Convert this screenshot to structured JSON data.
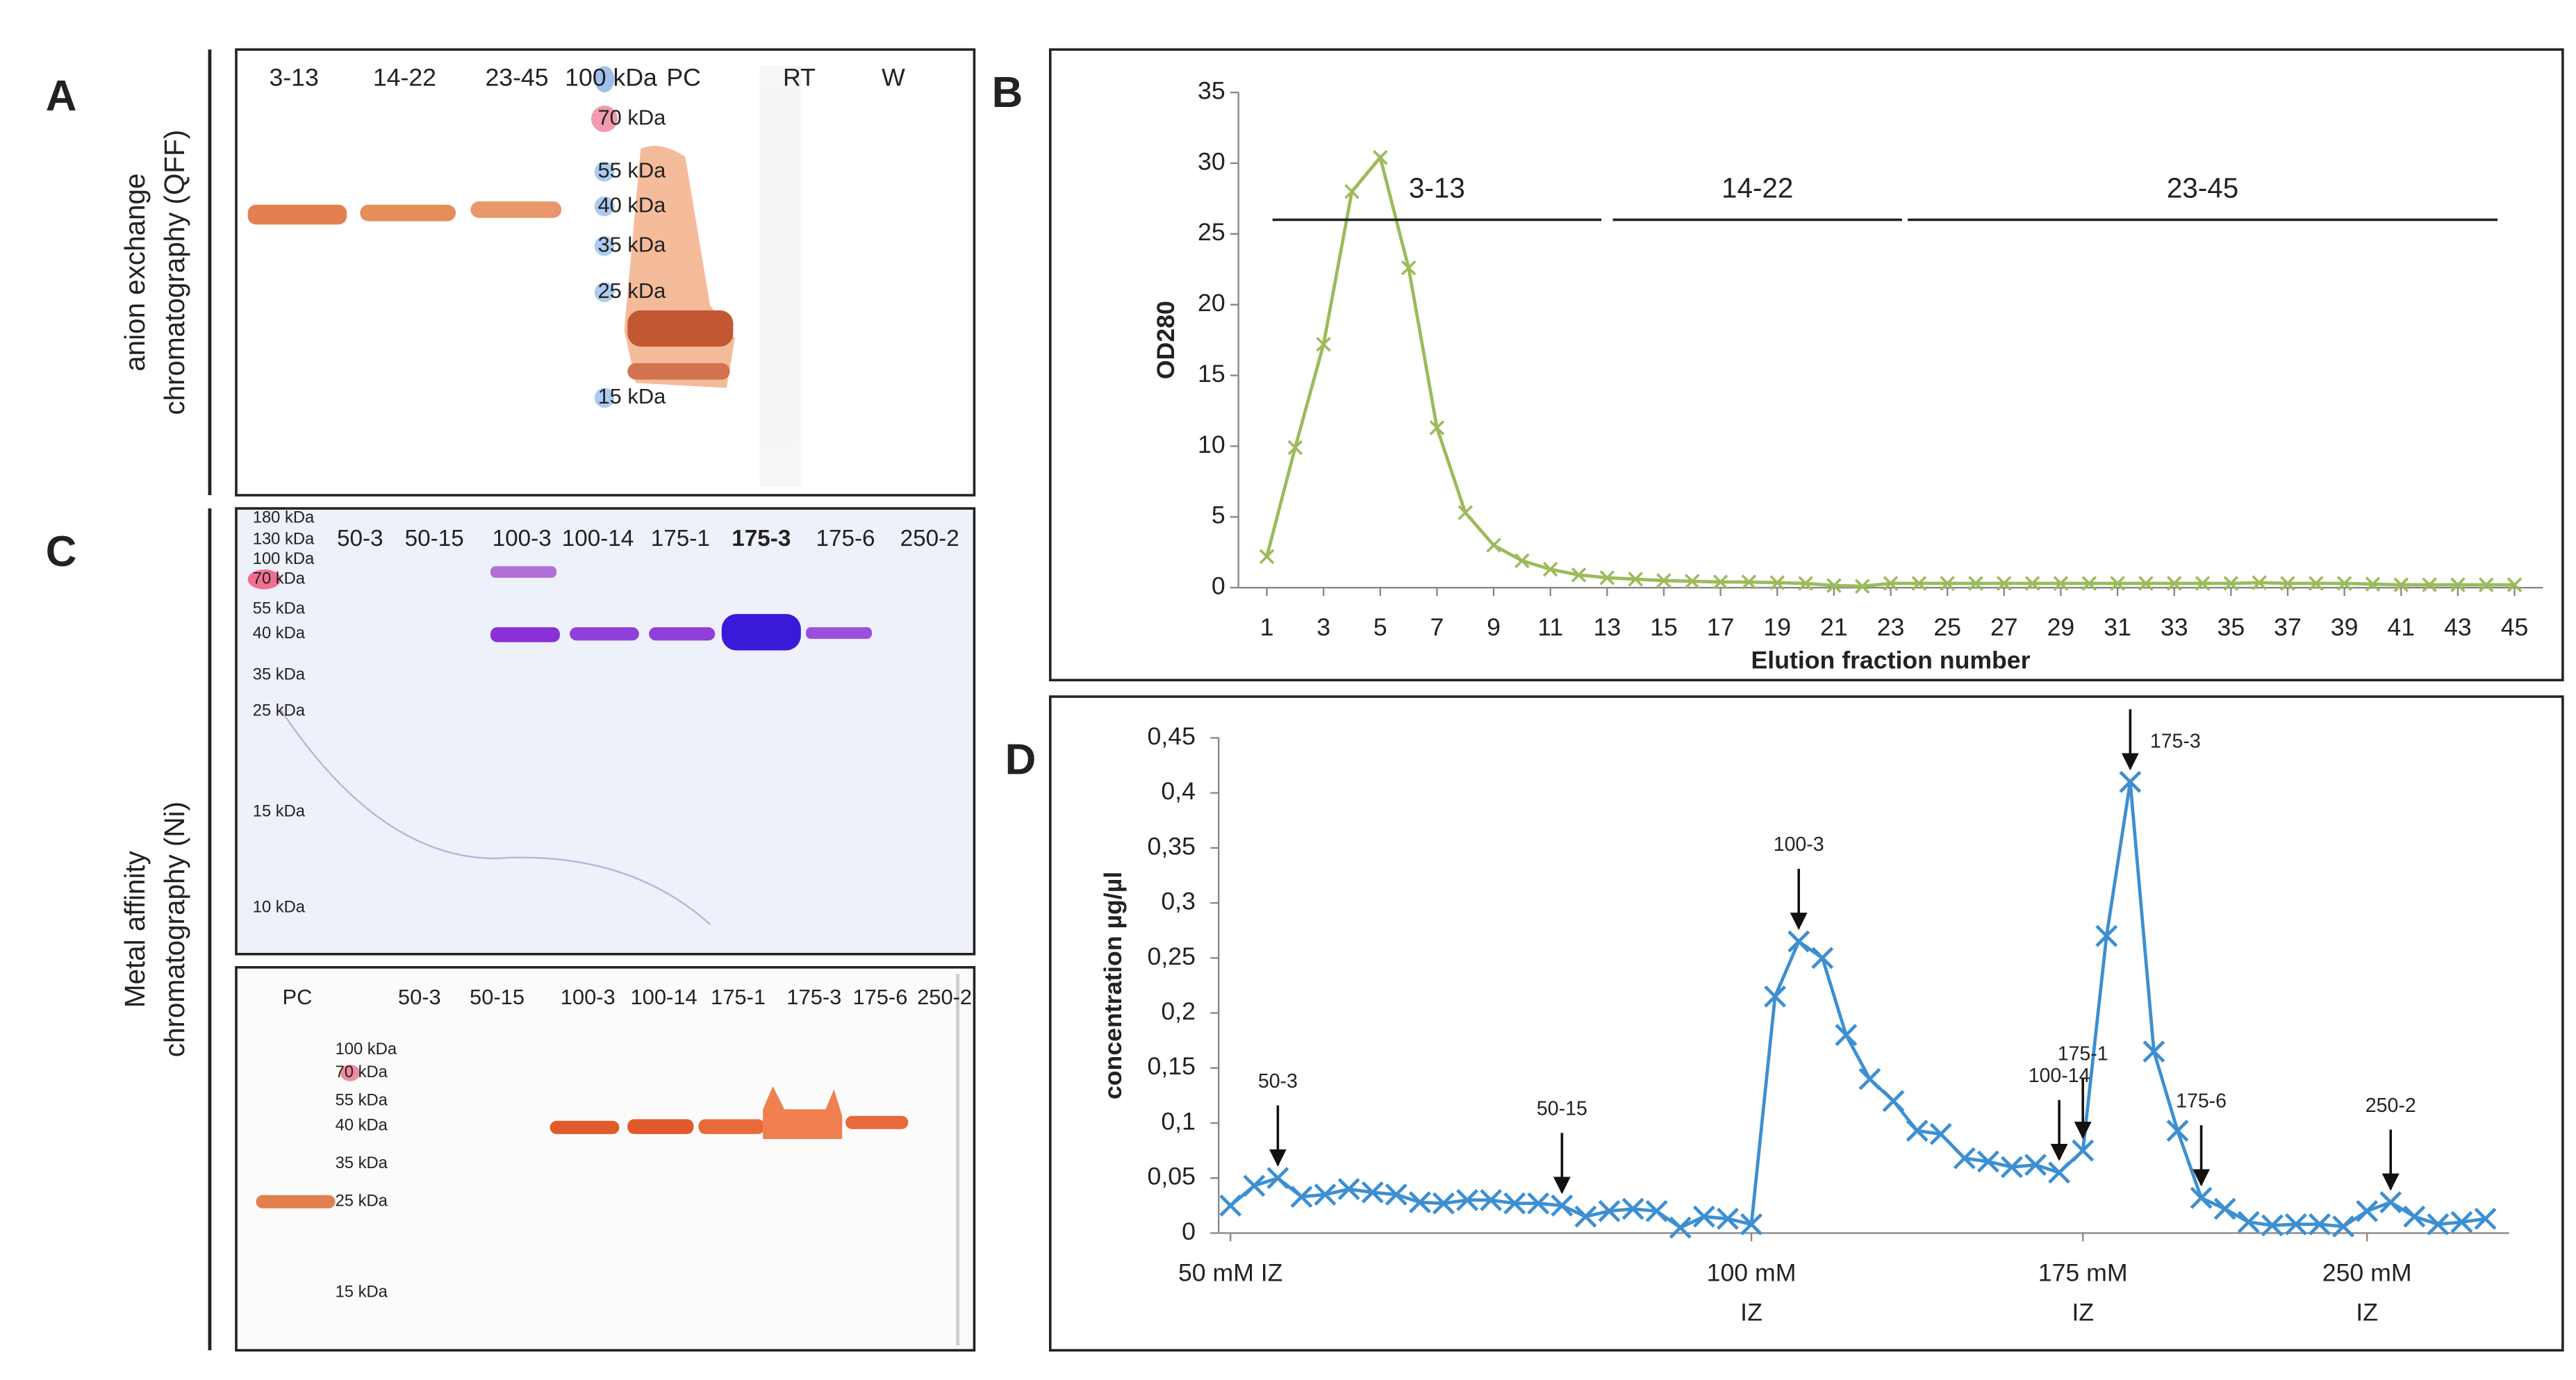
{
  "panels": [
    "A",
    "B",
    "C",
    "D"
  ],
  "gels": {
    "A": {
      "side_label": [
        "anion exchange",
        "chromatography (QFF)"
      ],
      "lanes": [
        "3-13",
        "14-22",
        "23-45",
        "100 kDa",
        "PC",
        "RT",
        "W"
      ],
      "ladder": [
        "70 kDa",
        "55 kDa",
        "40 kDa",
        "35 kDa",
        "25 kDa",
        "15 kDa"
      ]
    },
    "C": {
      "side_label": [
        "Metal affinity",
        "chromatography (Ni)"
      ],
      "top": {
        "lanes": [
          "50-3",
          "50-15",
          "100-3",
          "100-14",
          "175-1",
          "175-3",
          "175-6",
          "250-2"
        ],
        "ladder": [
          "180 kDa",
          "130 kDa",
          "100 kDa",
          "70 kDa",
          "55 kDa",
          "40 kDa",
          "35 kDa",
          "25 kDa",
          "15 kDa",
          "10 kDa"
        ]
      },
      "bottom": {
        "lanes": [
          "PC",
          "50-3",
          "50-15",
          "100-3",
          "100-14",
          "175-1",
          "175-3",
          "175-6",
          "250-2"
        ],
        "ladder": [
          "100 kDa",
          "70 kDa",
          "55 kDa",
          "40 kDa",
          "35 kDa",
          "25 kDa",
          "15 kDa"
        ]
      }
    }
  },
  "chart_data": [
    {
      "type": "line",
      "xlabel": "Elution fraction number",
      "ylabel": "OD280",
      "color": "#9bbb59",
      "marker": "x",
      "grid": false,
      "x": [
        1,
        2,
        3,
        4,
        5,
        6,
        7,
        8,
        9,
        10,
        11,
        12,
        13,
        14,
        15,
        16,
        17,
        18,
        19,
        20,
        21,
        22,
        23,
        24,
        25,
        26,
        27,
        28,
        29,
        30,
        31,
        32,
        33,
        34,
        35,
        36,
        37,
        38,
        39,
        40,
        41,
        42,
        43,
        44,
        45
      ],
      "values": [
        2.2,
        9.9,
        17.2,
        28,
        30.4,
        22.6,
        11.3,
        5.3,
        3,
        1.9,
        1.3,
        0.9,
        0.7,
        0.6,
        0.5,
        0.45,
        0.4,
        0.4,
        0.35,
        0.3,
        0.15,
        0.1,
        0.3,
        0.3,
        0.3,
        0.3,
        0.3,
        0.3,
        0.3,
        0.3,
        0.3,
        0.3,
        0.3,
        0.3,
        0.3,
        0.35,
        0.3,
        0.3,
        0.3,
        0.25,
        0.2,
        0.2,
        0.2,
        0.2,
        0.2
      ],
      "xlim": [
        0,
        46
      ],
      "xticks": [
        1,
        3,
        5,
        7,
        9,
        11,
        13,
        15,
        17,
        19,
        21,
        23,
        25,
        27,
        29,
        31,
        33,
        35,
        37,
        39,
        41,
        43,
        45
      ],
      "ylim": [
        0,
        35
      ],
      "yticks": [
        0,
        5,
        10,
        15,
        20,
        25,
        30,
        35
      ],
      "annotations": [
        {
          "text": "3-13",
          "x": [
            1.2,
            12.8
          ],
          "y": 26
        },
        {
          "text": "14-22",
          "x": [
            13.2,
            23.4
          ],
          "y": 26
        },
        {
          "text": "23-45",
          "x": [
            23.6,
            44.4
          ],
          "y": 26
        }
      ]
    },
    {
      "type": "line",
      "ylabel": "concentration µg/µl",
      "color": "#3d8fd1",
      "marker": "x",
      "grid": false,
      "x": [
        1,
        2,
        3,
        4,
        5,
        6,
        7,
        8,
        9,
        10,
        11,
        12,
        13,
        14,
        15,
        16,
        17,
        18,
        19,
        20,
        21,
        22,
        23,
        24,
        25,
        26,
        27,
        28,
        29,
        30,
        31,
        32,
        33,
        34,
        35,
        36,
        37,
        38,
        39,
        40,
        41,
        42,
        43,
        44,
        45,
        46,
        47,
        48,
        49,
        50,
        51,
        52,
        53,
        54
      ],
      "values": [
        0.025,
        0.043,
        0.05,
        0.033,
        0.035,
        0.04,
        0.037,
        0.035,
        0.028,
        0.027,
        0.03,
        0.03,
        0.027,
        0.027,
        0.025,
        0.015,
        0.02,
        0.022,
        0.02,
        0.005,
        0.015,
        0.013,
        0.008,
        0.215,
        0.265,
        0.25,
        0.18,
        0.14,
        0.12,
        0.093,
        0.09,
        0.068,
        0.065,
        0.06,
        0.062,
        0.055,
        0.075,
        0.27,
        0.41,
        0.165,
        0.093,
        0.032,
        0.022,
        0.01,
        0.007,
        0.008,
        0.008,
        0.006,
        0.02,
        0.028,
        0.015,
        0.008,
        0.01,
        0.013
      ],
      "xlim": [
        0.5,
        55
      ],
      "xticks": [
        {
          "value": 1,
          "label": [
            "50 mM IZ"
          ]
        },
        {
          "value": 23,
          "label": [
            "100 mM",
            "IZ"
          ]
        },
        {
          "value": 37,
          "label": [
            "175 mM",
            "IZ"
          ]
        },
        {
          "value": 49,
          "label": [
            "250 mM",
            "IZ"
          ]
        }
      ],
      "ylim": [
        0,
        0.45
      ],
      "yticks": [
        0,
        {
          "value": 0.05,
          "label": "0,05"
        },
        {
          "value": 0.1,
          "label": "0,1"
        },
        {
          "value": 0.15,
          "label": "0,15"
        },
        {
          "value": 0.2,
          "label": "0,2"
        },
        {
          "value": 0.25,
          "label": "0,25"
        },
        {
          "value": 0.3,
          "label": "0,3"
        },
        {
          "value": 0.35,
          "label": "0,35"
        },
        {
          "value": 0.4,
          "label": "0,4"
        },
        {
          "value": 0.45,
          "label": "0,45"
        }
      ],
      "annotations": [
        {
          "text": "50-3",
          "x": 3
        },
        {
          "text": "50-15",
          "x": 15
        },
        {
          "text": "100-3",
          "x": 25
        },
        {
          "text": "100-14",
          "x": 36
        },
        {
          "text": "175-1",
          "x": 37
        },
        {
          "text": "175-3",
          "x": 39
        },
        {
          "text": "175-6",
          "x": 42
        },
        {
          "text": "250-2",
          "x": 50
        }
      ]
    }
  ]
}
